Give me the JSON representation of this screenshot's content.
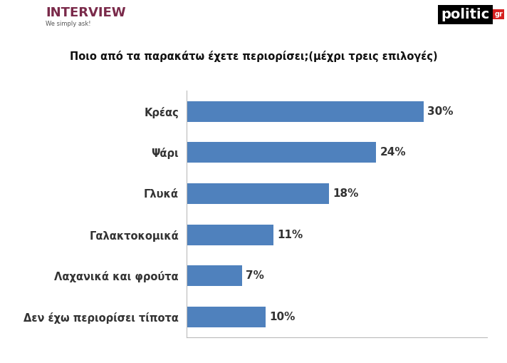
{
  "chart_data": {
    "type": "bar",
    "orientation": "horizontal",
    "title": "Ποιο από τα παρακάτω έχετε περιορίσει;(μέχρι τρεις επιλογές)",
    "annotations": [
      "INTERVIEW",
      "We simply ask!",
      "politic",
      "gr"
    ],
    "categories": [
      "Κρέας",
      "Ψάρι",
      "Γλυκά",
      "Γαλακτοκομικά",
      "Λαχανικά και φρούτα",
      "Δεν έχω περιορίσει τίποτα"
    ],
    "values": [
      30,
      24,
      18,
      11,
      7,
      10
    ],
    "value_labels": [
      "30%",
      "24%",
      "18%",
      "11%",
      "7%",
      "10%"
    ],
    "color": "#4f81bd",
    "xlim": [
      0,
      38
    ],
    "xticks": [],
    "data_labels": true,
    "tick_labels": "y",
    "grid": false
  }
}
